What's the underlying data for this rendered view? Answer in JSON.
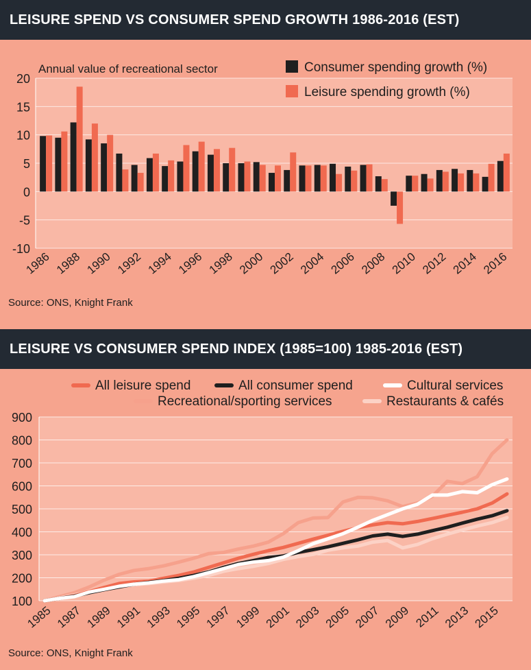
{
  "colors": {
    "header_bg": "#232a33",
    "panel_bg": "#f6a48e",
    "plot_bg": "#f9b8a6",
    "consumer": "#1f1f1f",
    "leisure": "#f06a50",
    "cultural": "#ffffff",
    "recreational": "#f6a18c",
    "restaurants": "#fcd2c6"
  },
  "chart1": {
    "header": "LEISURE SPEND VS CONSUMER SPEND GROWTH 1986-2016 (EST)",
    "source": "Source: ONS, Knight Frank"
  },
  "chart2": {
    "header": "LEISURE VS CONSUMER SPEND INDEX (1985=100) 1985-2016 (EST)",
    "source": "Source: ONS, Knight Frank"
  },
  "chart_data": [
    {
      "type": "bar",
      "title": "LEISURE SPEND VS CONSUMER SPEND GROWTH 1986-2016 (EST)",
      "annotation": "Annual value of recreational sector",
      "categories": [
        1986,
        1987,
        1988,
        1989,
        1990,
        1991,
        1992,
        1993,
        1994,
        1995,
        1996,
        1997,
        1998,
        1999,
        2000,
        2001,
        2002,
        2003,
        2004,
        2005,
        2006,
        2007,
        2008,
        2009,
        2010,
        2011,
        2012,
        2013,
        2014,
        2015,
        2016
      ],
      "xtick_labels": [
        "1986",
        "1988",
        "1990",
        "1992",
        "1994",
        "1996",
        "1998",
        "2000",
        "2002",
        "2004",
        "2006",
        "2008",
        "2010",
        "2012",
        "2014",
        "2016"
      ],
      "ylim": [
        -10,
        20
      ],
      "yticks": [
        "20",
        "15",
        "10",
        "5",
        "0",
        "-5",
        "-10"
      ],
      "legend_position": "top-right",
      "series": [
        {
          "name": "Consumer spending growth (%)",
          "color": "#1f1f1f",
          "values": [
            9.8,
            9.5,
            12.2,
            9.2,
            8.5,
            6.7,
            4.7,
            5.9,
            4.5,
            5.3,
            7.1,
            6.5,
            5.0,
            5.0,
            5.2,
            3.3,
            3.8,
            4.6,
            4.7,
            4.9,
            4.4,
            4.7,
            2.7,
            -2.5,
            2.8,
            3.1,
            3.8,
            4.0,
            3.8,
            2.6,
            5.4
          ]
        },
        {
          "name": "Leisure spending growth (%)",
          "color": "#f06a50",
          "values": [
            9.9,
            10.6,
            18.5,
            12.0,
            10.0,
            3.9,
            3.3,
            6.7,
            5.5,
            8.2,
            8.8,
            7.5,
            7.7,
            5.3,
            4.7,
            4.6,
            6.9,
            4.6,
            4.6,
            3.1,
            3.7,
            4.8,
            2.2,
            -5.7,
            2.8,
            2.3,
            3.5,
            3.2,
            3.2,
            4.9,
            6.7
          ]
        }
      ]
    },
    {
      "type": "line",
      "title": "LEISURE VS CONSUMER SPEND INDEX (1985=100) 1985-2016 (EST)",
      "x": [
        1985,
        1986,
        1987,
        1988,
        1989,
        1990,
        1991,
        1992,
        1993,
        1994,
        1995,
        1996,
        1997,
        1998,
        1999,
        2000,
        2001,
        2002,
        2003,
        2004,
        2005,
        2006,
        2007,
        2008,
        2009,
        2010,
        2011,
        2012,
        2013,
        2014,
        2015,
        2016
      ],
      "xtick_labels": [
        "1985",
        "1987",
        "1989",
        "1991",
        "1993",
        "1995",
        "1997",
        "1999",
        "2001",
        "2003",
        "2005",
        "2007",
        "2009",
        "2011",
        "2013",
        "2015"
      ],
      "ylim": [
        100,
        900
      ],
      "yticks": [
        "900",
        "800",
        "700",
        "600",
        "500",
        "400",
        "300",
        "200",
        "100"
      ],
      "legend_position": "top",
      "series": [
        {
          "name": "Recreational/sporting services",
          "color": "#f6a18c",
          "values": [
            100,
            118,
            135,
            160,
            190,
            215,
            232,
            240,
            252,
            268,
            285,
            305,
            310,
            325,
            338,
            355,
            392,
            440,
            460,
            462,
            530,
            550,
            548,
            535,
            510,
            525,
            555,
            620,
            610,
            640,
            740,
            800
          ]
        },
        {
          "name": "Restaurants & cafés",
          "color": "#fcd2c6",
          "values": [
            100,
            112,
            125,
            140,
            152,
            163,
            170,
            175,
            182,
            188,
            198,
            210,
            228,
            240,
            250,
            262,
            280,
            292,
            302,
            320,
            330,
            338,
            355,
            362,
            330,
            345,
            370,
            390,
            408,
            425,
            440,
            462
          ]
        },
        {
          "name": "All leisure spend",
          "color": "#f06a50",
          "values": [
            100,
            110,
            122,
            140,
            158,
            175,
            182,
            185,
            198,
            210,
            225,
            245,
            265,
            285,
            302,
            318,
            332,
            350,
            368,
            385,
            402,
            418,
            430,
            440,
            435,
            445,
            458,
            472,
            485,
            500,
            525,
            565
          ]
        },
        {
          "name": "All consumer spend",
          "color": "#1f1f1f",
          "values": [
            100,
            110,
            120,
            135,
            148,
            160,
            172,
            180,
            188,
            198,
            210,
            225,
            245,
            262,
            275,
            288,
            295,
            310,
            322,
            335,
            350,
            365,
            382,
            390,
            380,
            390,
            405,
            420,
            438,
            455,
            470,
            492
          ]
        },
        {
          "name": "Cultural services",
          "color": "#ffffff",
          "values": [
            100,
            110,
            118,
            138,
            150,
            163,
            172,
            178,
            186,
            192,
            205,
            222,
            240,
            258,
            268,
            275,
            290,
            318,
            348,
            370,
            392,
            420,
            450,
            475,
            500,
            520,
            560,
            560,
            575,
            570,
            605,
            630
          ]
        }
      ],
      "legend_order": [
        "All leisure spend",
        "All consumer spend",
        "Cultural services",
        "Recreational/sporting services",
        "Restaurants & cafés"
      ]
    }
  ]
}
